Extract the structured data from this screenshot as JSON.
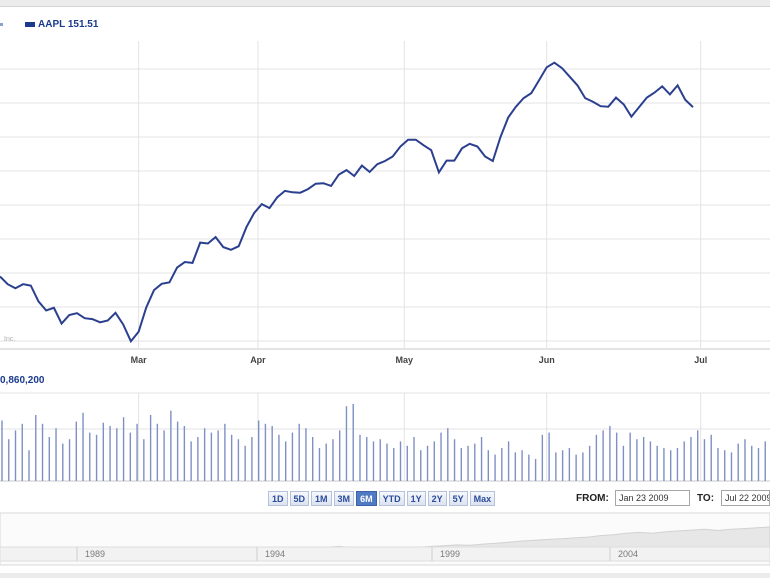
{
  "legend": {
    "symbol": "AAPL",
    "value": "151.51"
  },
  "volume": {
    "label": "0,860,200"
  },
  "range_buttons": [
    {
      "label": "1D"
    },
    {
      "label": "5D"
    },
    {
      "label": "1M"
    },
    {
      "label": "3M"
    },
    {
      "label": "6M",
      "active": true
    },
    {
      "label": "YTD"
    },
    {
      "label": "1Y"
    },
    {
      "label": "2Y"
    },
    {
      "label": "5Y"
    },
    {
      "label": "Max"
    }
  ],
  "from": {
    "label": "FROM:",
    "value": "Jan 23 2009"
  },
  "to": {
    "label": "TO:",
    "value": "Jul 22 2009"
  },
  "colors": {
    "line": "#2b3f8f",
    "volume_bar": "#7f8fc4",
    "grid": "#e3e3e3",
    "overview_fill": "#e7e7e7"
  },
  "chart_data": {
    "type": "line",
    "series": [
      {
        "name": "AAPL",
        "x": [
          0,
          2,
          4,
          6,
          8,
          10,
          12,
          14,
          16,
          18,
          20,
          22,
          24,
          26,
          28,
          30,
          32,
          34,
          36,
          38,
          40,
          42,
          44,
          46,
          48,
          50,
          52,
          54,
          56,
          58,
          60,
          62,
          64,
          66,
          68,
          70,
          72,
          74,
          76,
          78,
          80,
          82,
          84,
          86,
          88,
          90,
          92,
          94,
          96,
          98,
          100,
          102,
          104,
          106,
          108,
          110,
          112,
          114,
          116,
          118,
          120,
          122,
          124,
          126,
          128,
          130,
          132,
          134,
          136,
          138,
          140,
          142,
          144,
          146,
          148,
          150,
          152,
          154,
          156,
          158,
          160,
          162,
          164,
          166,
          168,
          170,
          172,
          174,
          176,
          178,
          180
        ],
        "values": [
          88.0,
          86.3,
          85.4,
          86.3,
          86.0,
          82.5,
          80.5,
          81.1,
          77.6,
          79.5,
          79.9,
          78.8,
          78.6,
          77.9,
          78.3,
          80.0,
          77.4,
          73.7,
          75.8,
          81.2,
          85.0,
          86.4,
          86.7,
          90.0,
          91.2,
          91.0,
          95.5,
          95.3,
          96.7,
          94.5,
          93.9,
          94.7,
          98.9,
          102.0,
          104.0,
          103.1,
          105.5,
          106.9,
          106.6,
          106.5,
          107.3,
          108.5,
          108.6,
          108.0,
          110.5,
          111.5,
          110.2,
          112.5,
          111.1,
          112.8,
          113.5,
          114.5,
          116.7,
          118.2,
          118.2,
          117.0,
          115.9,
          111.0,
          113.6,
          113.6,
          116.3,
          117.3,
          116.7,
          114.5,
          113.5,
          118.8,
          123.1,
          125.5,
          127.4,
          128.5,
          131.3,
          134.2,
          135.2,
          134.0,
          132.1,
          130.2,
          127.4,
          126.6,
          125.6,
          125.5,
          127.5,
          126.0,
          123.3,
          125.4,
          127.5,
          128.6,
          130.0,
          128.2,
          130.2,
          127.0,
          125.4
        ]
      }
    ],
    "x_ticks": [
      {
        "label": "Mar",
        "x": 36
      },
      {
        "label": "Apr",
        "x": 67
      },
      {
        "label": "May",
        "x": 105
      },
      {
        "label": "Jun",
        "x": 142
      },
      {
        "label": "Jul",
        "x": 182
      }
    ],
    "xlim": [
      0,
      200
    ],
    "ylim": [
      72,
      140
    ],
    "volume_values": [
      55,
      38,
      46,
      52,
      28,
      60,
      52,
      40,
      48,
      34,
      38,
      54,
      62,
      44,
      42,
      53,
      50,
      48,
      58,
      44,
      52,
      38,
      60,
      52,
      46,
      64,
      54,
      50,
      36,
      40,
      48,
      44,
      46,
      52,
      42,
      38,
      32,
      40,
      55,
      52,
      50,
      42,
      36,
      44,
      52,
      48,
      40,
      30,
      34,
      38,
      46,
      68,
      70,
      42,
      40,
      36,
      38,
      34,
      30,
      36,
      32,
      40,
      28,
      32,
      36,
      44,
      48,
      38,
      30,
      32,
      34,
      40,
      28,
      24,
      30,
      36,
      26,
      28,
      24,
      20,
      42,
      44,
      26,
      28,
      30,
      24,
      26,
      32,
      42,
      46,
      50,
      44,
      32,
      44,
      38,
      40,
      36,
      32,
      30,
      28,
      30,
      36,
      40,
      46,
      38,
      42,
      30,
      28,
      26,
      34,
      38,
      32,
      30,
      36
    ],
    "volume_ylim": [
      0,
      80
    ],
    "overview": {
      "x_ticks": [
        "1989",
        "1994",
        "1999",
        "2004"
      ],
      "values": [
        6,
        7,
        8,
        10,
        9,
        8,
        11,
        10,
        9,
        8,
        9,
        12,
        10,
        9,
        8,
        10,
        11,
        9,
        8,
        10,
        12,
        14,
        16,
        15,
        18,
        20,
        22,
        19,
        16,
        15,
        17,
        18,
        20,
        22,
        24,
        26,
        25,
        28,
        30,
        33,
        36,
        38,
        40,
        42,
        44,
        46,
        50,
        52,
        56,
        58,
        56,
        60,
        62,
        64,
        66,
        63,
        66,
        68,
        70,
        72
      ]
    }
  }
}
